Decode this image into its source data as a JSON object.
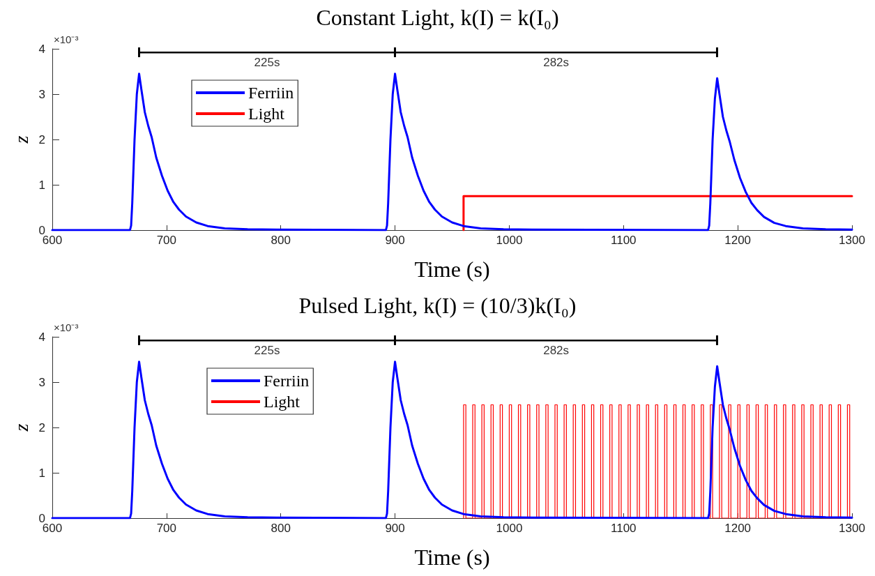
{
  "chart_data": [
    {
      "type": "line",
      "title": "Constant Light, k(I) = k(I₀)",
      "xlabel": "Time (s)",
      "ylabel": "z",
      "annotations": [
        "×10⁻³",
        "225s",
        "282s"
      ],
      "xlim": [
        600,
        1300
      ],
      "xticks": [
        600,
        700,
        800,
        900,
        1000,
        1100,
        1200,
        1300
      ],
      "ylim": [
        0,
        4
      ],
      "yticks": [
        0,
        1,
        2,
        3,
        4
      ],
      "grid": false,
      "legend": "top left",
      "series": [
        {
          "name": "Ferriin",
          "color": "#0000ff",
          "x": [
            600,
            668,
            669,
            670,
            672,
            674,
            676,
            678,
            681,
            684,
            687,
            691,
            696,
            701,
            706,
            711,
            717,
            726,
            736,
            751,
            771,
            796,
            892,
            893,
            894,
            896,
            898,
            900,
            902,
            905,
            908,
            911,
            915,
            920,
            925,
            930,
            935,
            941,
            950,
            960,
            975,
            995,
            1020,
            1174,
            1175,
            1176,
            1178,
            1180,
            1182,
            1184,
            1187,
            1190,
            1193,
            1197,
            1202,
            1207,
            1212,
            1217,
            1223,
            1232,
            1242,
            1257,
            1277,
            1300
          ],
          "values": [
            0,
            0,
            0.1,
            0.6,
            2.0,
            3.0,
            3.45,
            3.1,
            2.6,
            2.3,
            2.05,
            1.6,
            1.2,
            0.87,
            0.62,
            0.45,
            0.3,
            0.17,
            0.09,
            0.04,
            0.02,
            0.01,
            0,
            0.1,
            0.6,
            2.0,
            3.0,
            3.45,
            3.1,
            2.6,
            2.3,
            2.05,
            1.6,
            1.2,
            0.87,
            0.62,
            0.45,
            0.3,
            0.17,
            0.09,
            0.04,
            0.02,
            0.01,
            0,
            0.1,
            0.6,
            2.0,
            2.9,
            3.35,
            3.0,
            2.5,
            2.2,
            1.95,
            1.55,
            1.15,
            0.84,
            0.6,
            0.44,
            0.29,
            0.16,
            0.09,
            0.04,
            0.02,
            0.01
          ]
        },
        {
          "name": "Light",
          "type": "step",
          "color": "#ff0000",
          "x": [
            960,
            960,
            1300
          ],
          "values": [
            0,
            0.75,
            0.75
          ]
        },
        {
          "color": "#000000",
          "x": [
            676,
            900,
            1182
          ],
          "values": [
            3.92,
            3.92,
            3.92
          ]
        }
      ]
    },
    {
      "type": "line",
      "title": "Pulsed Light, k(I) = (10/3)k(I₀)",
      "xlabel": "Time (s)",
      "ylabel": "z",
      "annotations": [
        "×10⁻³",
        "225s",
        "282s"
      ],
      "xlim": [
        600,
        1300
      ],
      "xticks": [
        600,
        700,
        800,
        900,
        1000,
        1100,
        1200,
        1300
      ],
      "ylim": [
        0,
        4
      ],
      "yticks": [
        0,
        1,
        2,
        3,
        4
      ],
      "grid": false,
      "legend": "top left",
      "series": [
        {
          "name": "Ferriin",
          "color": "#0000ff",
          "x": [
            600,
            668,
            669,
            670,
            672,
            674,
            676,
            678,
            681,
            684,
            687,
            691,
            696,
            701,
            706,
            711,
            717,
            726,
            736,
            751,
            771,
            796,
            892,
            893,
            894,
            896,
            898,
            900,
            902,
            905,
            908,
            911,
            915,
            920,
            925,
            930,
            935,
            941,
            950,
            960,
            975,
            995,
            1020,
            1174,
            1175,
            1176,
            1178,
            1180,
            1182,
            1184,
            1187,
            1190,
            1193,
            1197,
            1202,
            1207,
            1212,
            1217,
            1223,
            1232,
            1242,
            1257,
            1277,
            1300
          ],
          "values": [
            0,
            0,
            0.1,
            0.6,
            2.0,
            3.0,
            3.45,
            3.1,
            2.6,
            2.3,
            2.05,
            1.6,
            1.2,
            0.87,
            0.62,
            0.45,
            0.3,
            0.17,
            0.09,
            0.04,
            0.02,
            0.01,
            0,
            0.1,
            0.6,
            2.0,
            3.0,
            3.45,
            3.1,
            2.6,
            2.3,
            2.05,
            1.6,
            1.2,
            0.87,
            0.62,
            0.45,
            0.3,
            0.17,
            0.09,
            0.04,
            0.02,
            0.01,
            0,
            0.1,
            0.6,
            2.0,
            2.9,
            3.35,
            3.0,
            2.5,
            2.2,
            1.95,
            1.55,
            1.15,
            0.84,
            0.6,
            0.44,
            0.29,
            0.16,
            0.09,
            0.04,
            0.02,
            0.01
          ]
        },
        {
          "name": "Light",
          "color": "#ff0000",
          "x": [
            960,
            960,
            962,
            962,
            968,
            968,
            970,
            970,
            976,
            976,
            978,
            978,
            984,
            984,
            986,
            986,
            992,
            992,
            994,
            994,
            1000,
            1000,
            1002,
            1002,
            1008,
            1008,
            1010,
            1010,
            1016,
            1016,
            1018,
            1018,
            1024,
            1024,
            1026,
            1026,
            1032,
            1032,
            1034,
            1034,
            1040,
            1040,
            1042,
            1042,
            1048,
            1048,
            1050,
            1050,
            1056,
            1056,
            1058,
            1058,
            1064,
            1064,
            1066,
            1066,
            1072,
            1072,
            1074,
            1074,
            1080,
            1080,
            1082,
            1082,
            1088,
            1088,
            1090,
            1090,
            1096,
            1096,
            1098,
            1098,
            1104,
            1104,
            1106,
            1106,
            1112,
            1112,
            1114,
            1114,
            1120,
            1120,
            1122,
            1122,
            1128,
            1128,
            1130,
            1130,
            1136,
            1136,
            1138,
            1138,
            1144,
            1144,
            1146,
            1146,
            1152,
            1152,
            1154,
            1154,
            1160,
            1160,
            1162,
            1162,
            1168,
            1168,
            1170,
            1170,
            1176,
            1176,
            1178,
            1178,
            1184,
            1184,
            1186,
            1186,
            1192,
            1192,
            1194,
            1194,
            1200,
            1200,
            1202,
            1202,
            1208,
            1208,
            1210,
            1210,
            1216,
            1216,
            1218,
            1218,
            1224,
            1224,
            1226,
            1226,
            1232,
            1232,
            1234,
            1234,
            1240,
            1240,
            1242,
            1242,
            1248,
            1248,
            1250,
            1250,
            1256,
            1256,
            1258,
            1258,
            1264,
            1264,
            1266,
            1266,
            1272,
            1272,
            1274,
            1274,
            1280,
            1280,
            1282,
            1282,
            1288,
            1288,
            1290,
            1290,
            1296,
            1296,
            1298,
            1298
          ],
          "values": [
            0,
            2.5,
            2.5,
            0,
            0,
            2.5,
            2.5,
            0,
            0,
            2.5,
            2.5,
            0,
            0,
            2.5,
            2.5,
            0,
            0,
            2.5,
            2.5,
            0,
            0,
            2.5,
            2.5,
            0,
            0,
            2.5,
            2.5,
            0,
            0,
            2.5,
            2.5,
            0,
            0,
            2.5,
            2.5,
            0,
            0,
            2.5,
            2.5,
            0,
            0,
            2.5,
            2.5,
            0,
            0,
            2.5,
            2.5,
            0,
            0,
            2.5,
            2.5,
            0,
            0,
            2.5,
            2.5,
            0,
            0,
            2.5,
            2.5,
            0,
            0,
            2.5,
            2.5,
            0,
            0,
            2.5,
            2.5,
            0,
            0,
            2.5,
            2.5,
            0,
            0,
            2.5,
            2.5,
            0,
            0,
            2.5,
            2.5,
            0,
            0,
            2.5,
            2.5,
            0,
            0,
            2.5,
            2.5,
            0,
            0,
            2.5,
            2.5,
            0,
            0,
            2.5,
            2.5,
            0,
            0,
            2.5,
            2.5,
            0,
            0,
            2.5,
            2.5,
            0,
            0,
            2.5,
            2.5,
            0,
            0,
            2.5,
            2.5,
            0,
            0,
            2.5,
            2.5,
            0,
            0,
            2.5,
            2.5,
            0,
            0,
            2.5,
            2.5,
            0,
            0,
            2.5,
            2.5,
            0,
            0,
            2.5,
            2.5,
            0,
            0,
            2.5,
            2.5,
            0,
            0,
            2.5,
            2.5,
            0,
            0,
            2.5,
            2.5,
            0,
            0,
            2.5,
            2.5,
            0,
            0,
            2.5,
            2.5,
            0,
            0,
            2.5,
            2.5,
            0,
            0,
            2.5,
            2.5,
            0,
            0,
            2.5,
            2.5,
            0,
            0,
            2.5,
            2.5,
            0,
            0,
            2.5,
            2.5,
            0
          ]
        },
        {
          "color": "#000000",
          "x": [
            676,
            900,
            1182
          ],
          "values": [
            3.92,
            3.92,
            3.92
          ]
        }
      ]
    }
  ]
}
